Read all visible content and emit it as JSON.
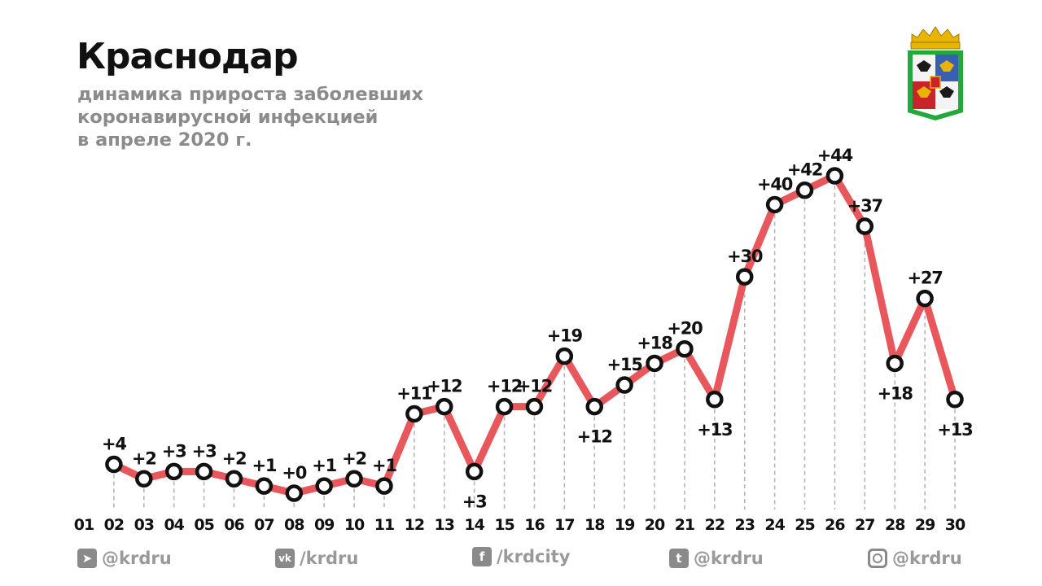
{
  "header": {
    "title": "Краснодар",
    "subtitle_lines": [
      "динамика прироста заболевших",
      "коронавирусной инфекцией",
      "в апреле 2020 г."
    ]
  },
  "emblem": {
    "icon": "krasnodar-coat-of-arms-icon"
  },
  "chart_data": {
    "type": "line",
    "title": "Краснодар",
    "categories": [
      "01",
      "02",
      "03",
      "04",
      "05",
      "06",
      "07",
      "08",
      "09",
      "10",
      "11",
      "12",
      "13",
      "14",
      "15",
      "16",
      "17",
      "18",
      "19",
      "20",
      "21",
      "22",
      "23",
      "24",
      "25",
      "26",
      "27",
      "28",
      "29",
      "30"
    ],
    "series": [
      {
        "x": [
          "02",
          "03",
          "04",
          "05",
          "06",
          "07",
          "08",
          "09",
          "10",
          "11",
          "12",
          "13",
          "14",
          "15",
          "16",
          "17",
          "18",
          "19",
          "20",
          "21",
          "22",
          "23",
          "24",
          "25",
          "26",
          "27",
          "28",
          "29",
          "30"
        ],
        "values": [
          4,
          2,
          3,
          3,
          2,
          1,
          0,
          1,
          2,
          1,
          11,
          12,
          3,
          12,
          12,
          19,
          12,
          15,
          18,
          20,
          13,
          30,
          40,
          42,
          44,
          37,
          18,
          27,
          13
        ],
        "labels": [
          "+4",
          "+2",
          "+3",
          "+3",
          "+2",
          "+1",
          "+0",
          "+1",
          "+2",
          "+1",
          "+11",
          "+12",
          "+3",
          "+12",
          "+12",
          "+19",
          "+12",
          "+15",
          "+18",
          "+20",
          "+13",
          "+30",
          "+40",
          "+42",
          "+44",
          "+37",
          "+18",
          "+27",
          "+13"
        ],
        "label_position": [
          "above",
          "above",
          "above",
          "above",
          "above",
          "above",
          "above",
          "above",
          "above",
          "above",
          "above",
          "above",
          "below",
          "above",
          "above",
          "above",
          "below",
          "above",
          "above",
          "above",
          "below",
          "above",
          "above",
          "above",
          "above",
          "above",
          "below",
          "above",
          "below"
        ]
      }
    ],
    "ylim": [
      0,
      44
    ],
    "grid": "dashed vertical drop lines",
    "colors": {
      "line": "#e8575c",
      "marker_fill": "#ffffff",
      "marker_stroke": "#111111",
      "drop_line": "#b5b5b5",
      "text": "#111111"
    }
  },
  "footer": {
    "socials": [
      {
        "icon": "telegram-icon",
        "glyph": "➤",
        "text": "@krdru"
      },
      {
        "icon": "vk-icon",
        "glyph": "vk",
        "text": "/krdru"
      },
      {
        "icon": "facebook-icon",
        "glyph": "f",
        "text": "/krdcity"
      },
      {
        "icon": "twitter-icon",
        "glyph": "t",
        "text": "@krdru"
      },
      {
        "icon": "instagram-icon",
        "glyph": "",
        "text": "@krdru"
      }
    ]
  }
}
